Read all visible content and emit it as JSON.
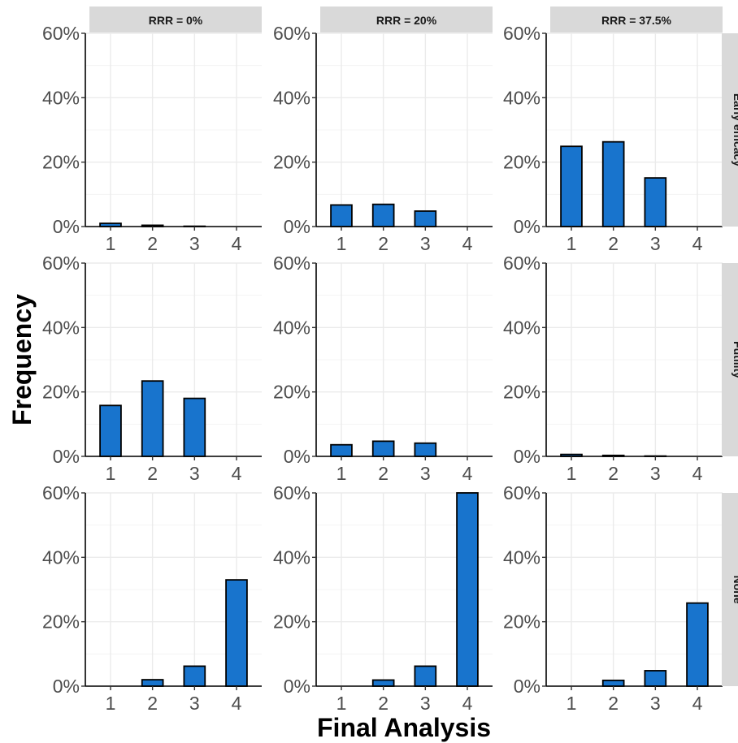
{
  "chart_data": {
    "type": "bar",
    "xlabel": "Final Analysis",
    "ylabel": "Frequency",
    "categories": [
      "1",
      "2",
      "3",
      "4"
    ],
    "ylim": [
      0,
      60
    ],
    "yticks": [
      0,
      20,
      40,
      60
    ],
    "ytick_labels": [
      "0%",
      "20%",
      "40%",
      "60%"
    ],
    "grid": true,
    "bar_color": "#1874CD",
    "bar_outline": "#000000",
    "strip_fill": "#D9D9D9",
    "col_facets": [
      "RRR = 0%",
      "RRR = 20%",
      "RRR = 37.5%"
    ],
    "row_facets": [
      "Early efficacy",
      "Futility",
      "None"
    ],
    "panels": [
      [
        {
          "values": [
            1.0,
            0.4,
            0.1,
            0
          ]
        },
        {
          "values": [
            6.7,
            6.9,
            4.8,
            0
          ]
        },
        {
          "values": [
            24.9,
            26.3,
            15.1,
            0
          ]
        }
      ],
      [
        {
          "values": [
            15.8,
            23.4,
            18.0,
            0
          ]
        },
        {
          "values": [
            3.6,
            4.7,
            4.1,
            0
          ]
        },
        {
          "values": [
            0.6,
            0.3,
            0.1,
            0
          ]
        }
      ],
      [
        {
          "values": [
            0,
            2.0,
            6.2,
            33.0
          ]
        },
        {
          "values": [
            0,
            1.9,
            6.2,
            60.5
          ]
        },
        {
          "values": [
            0,
            1.8,
            4.8,
            25.8
          ]
        }
      ]
    ]
  }
}
